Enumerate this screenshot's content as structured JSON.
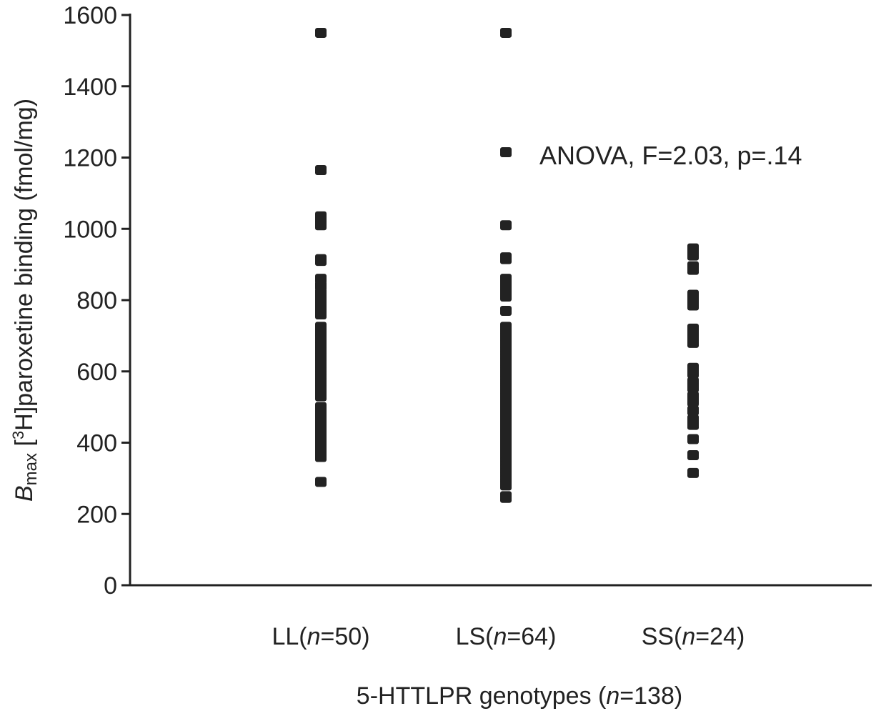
{
  "chart_data": {
    "type": "scatter",
    "title": "",
    "xlabel": {
      "text_before": "5-HTTLPR genotypes (",
      "italic": "n",
      "text_after": "=138)"
    },
    "ylabel": {
      "symbol": "B",
      "subscript": "max",
      "text_mid": " [",
      "superscript": "3",
      "text_after": "H]paroxetine binding (fmol/mg)"
    },
    "ylim": [
      0,
      1600
    ],
    "yticks": [
      0,
      200,
      400,
      600,
      800,
      1000,
      1200,
      1400,
      1600
    ],
    "categories": [
      {
        "prefix": "LL(",
        "italic": "n",
        "suffix": "=50)"
      },
      {
        "prefix": "LS(",
        "italic": "n",
        "suffix": "=64)"
      },
      {
        "prefix": "SS(",
        "italic": "n",
        "suffix": "=24)"
      }
    ],
    "annotation": "ANOVA, F=2.03, p=.14",
    "grid": false,
    "marker_color": "#222222",
    "series": [
      {
        "category": "LL",
        "values": [
          1550,
          1165,
          1035,
          1020,
          1010,
          915,
          910,
          860,
          840,
          820,
          805,
          790,
          780,
          770,
          760,
          725,
          715,
          705,
          690,
          680,
          670,
          655,
          640,
          630,
          620,
          610,
          600,
          590,
          580,
          570,
          560,
          550,
          540,
          530,
          500,
          490,
          480,
          470,
          460,
          450,
          440,
          430,
          420,
          410,
          400,
          390,
          380,
          370,
          360,
          290
        ]
      },
      {
        "category": "LS",
        "values": [
          1550,
          1215,
          1010,
          920,
          915,
          860,
          850,
          835,
          820,
          810,
          770,
          725,
          715,
          705,
          695,
          685,
          675,
          665,
          655,
          645,
          635,
          625,
          615,
          605,
          595,
          585,
          575,
          565,
          555,
          545,
          535,
          525,
          515,
          505,
          495,
          485,
          475,
          465,
          455,
          445,
          435,
          425,
          415,
          405,
          395,
          385,
          375,
          365,
          355,
          345,
          335,
          325,
          315,
          305,
          295,
          285,
          280,
          490,
          510,
          530,
          550,
          600,
          245,
          250
        ]
      },
      {
        "category": "SS",
        "values": [
          945,
          935,
          925,
          895,
          885,
          815,
          800,
          785,
          720,
          705,
          690,
          680,
          610,
          595,
          570,
          555,
          530,
          515,
          490,
          465,
          450,
          410,
          365,
          315
        ]
      }
    ]
  }
}
